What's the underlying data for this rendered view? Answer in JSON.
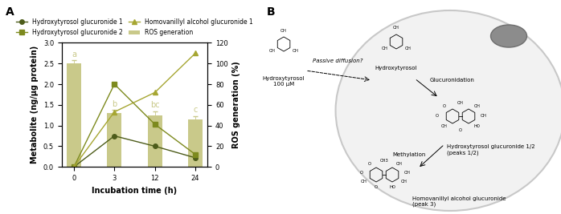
{
  "chart_data": {
    "type": "line",
    "title": "A",
    "x_label": "Incubation time (h)",
    "y_label": "Metabolite (ng/µg protein)",
    "y2_label": "ROS generation (%)",
    "categories": [
      "0",
      "3",
      "12",
      "24"
    ],
    "ylim": [
      0,
      3.0
    ],
    "yticks": [
      {
        "value": 0,
        "label": "0.0"
      },
      {
        "value": 0.5,
        "label": "0.5"
      },
      {
        "value": 1.0,
        "label": "1.0"
      },
      {
        "value": 1.5,
        "label": "1.5"
      },
      {
        "value": 2.0,
        "label": "2.0"
      },
      {
        "value": 2.5,
        "label": "2.5"
      },
      {
        "value": 3.0,
        "label": "3.0"
      }
    ],
    "y2lim": [
      0,
      120
    ],
    "y2ticks": [
      0,
      20,
      40,
      60,
      80,
      100,
      120
    ],
    "legend": "lower center",
    "series": [
      {
        "name": "Hydroxytyrosol glucuronide 1",
        "type": "line",
        "color": "#4d5c1a",
        "marker": "circle",
        "values": [
          0,
          0.75,
          0.5,
          0.22
        ]
      },
      {
        "name": "Hydroxytyrosol glucuronide 2",
        "type": "line",
        "color": "#7d8a1e",
        "marker": "square",
        "values": [
          0,
          2.0,
          1.03,
          0.3
        ]
      },
      {
        "name": "Homovanillyl alcohol glucuronide 1",
        "type": "line",
        "color": "#a6a632",
        "marker": "triangle",
        "values": [
          0,
          1.33,
          1.8,
          2.75
        ]
      },
      {
        "name": "ROS generation",
        "type": "bar",
        "axis": "y2",
        "color": "#c9c98a",
        "values": [
          100,
          52,
          50,
          46
        ],
        "errors": [
          3,
          3,
          4,
          3
        ],
        "significance": [
          "a",
          "b",
          "bc",
          "c"
        ]
      }
    ]
  },
  "diagram": {
    "title": "B",
    "molecules": [
      {
        "label": "Hydroxytyrosol\n100 µM",
        "rings": 1,
        "atoms": [
          "OH",
          "OH",
          "OH"
        ]
      },
      {
        "label": "Hydroxytyrosol",
        "rings": 1,
        "atoms": [
          "OH",
          "OH",
          "OH"
        ]
      },
      {
        "label": "Hydroxytyrosol glucuronide 1/2\n(peaks 1/2)",
        "rings": 2,
        "atoms": [
          "OH",
          "O",
          "O",
          "OH",
          "O",
          "HO",
          "OH",
          "OH"
        ]
      },
      {
        "label": "Homovanillyl alcohol glucuronide\n(peak 3)",
        "rings": 2,
        "atoms": [
          "CH3",
          "O",
          "O",
          "OH",
          "O",
          "HO",
          "OH",
          "OH",
          "OH"
        ]
      }
    ],
    "arrows": [
      {
        "label": "Passive diffusion?"
      },
      {
        "label": "Glucuronidation"
      },
      {
        "label": "Methylation"
      }
    ]
  }
}
